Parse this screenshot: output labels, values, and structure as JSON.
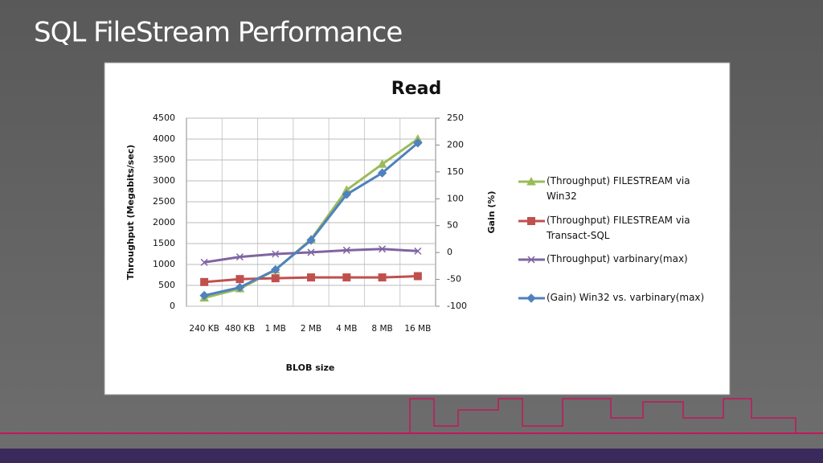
{
  "slide": {
    "title": "SQL FileStream Performance"
  },
  "chart_data": {
    "type": "line",
    "title": "Read",
    "x_label": "BLOB size",
    "y_label": "Throughput (Megabits/sec)",
    "y2_label": "Gain (%)",
    "categories": [
      "240 KB",
      "480 KB",
      "1 MB",
      "2 MB",
      "4 MB",
      "8 MB",
      "16 MB"
    ],
    "series": [
      {
        "name": "(Throughput) FILESTREAM  via Win32",
        "color": "#9bbb59",
        "marker": "triangle",
        "values": [
          200,
          420,
          870,
          1600,
          2780,
          3400,
          4000
        ]
      },
      {
        "name": "(Throughput) FILESTREAM  via Transact-SQL",
        "color": "#c0504d",
        "marker": "square",
        "values": [
          580,
          650,
          670,
          690,
          690,
          690,
          720
        ]
      },
      {
        "name": "(Throughput) varbinary(max)",
        "color": "#8064a2",
        "marker": "x",
        "values": [
          1050,
          1180,
          1250,
          1290,
          1340,
          1370,
          1320
        ]
      },
      {
        "name": "(Gain) Win32 vs. varbinary(max)",
        "color": "#4f81bd",
        "marker": "diamond",
        "axis": "y2",
        "values": [
          -80,
          -65,
          -32,
          23,
          108,
          148,
          204
        ]
      }
    ],
    "ylim": [
      0,
      4500
    ],
    "yticks": [
      0,
      500,
      1000,
      1500,
      2000,
      2500,
      3000,
      3500,
      4000,
      4500
    ],
    "y2lim": [
      -100,
      250
    ],
    "y2ticks": [
      -100,
      -50,
      0,
      50,
      100,
      150,
      200,
      250
    ],
    "grid": true,
    "legend": "right"
  }
}
